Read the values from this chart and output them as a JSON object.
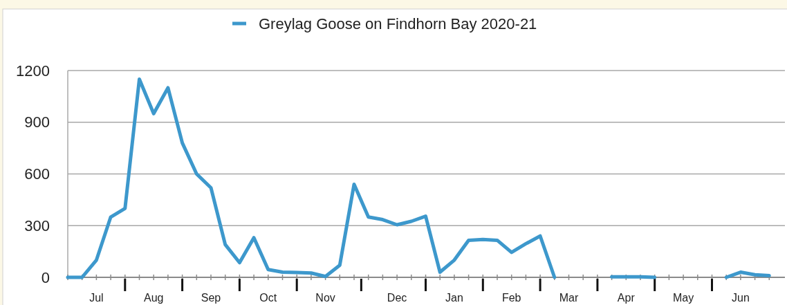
{
  "chart_data": {
    "type": "line",
    "legend": "top",
    "grid": "y",
    "categories": [
      null,
      null,
      "Jul",
      null,
      null,
      null,
      "Aug",
      null,
      null,
      null,
      "Sep",
      null,
      null,
      null,
      "Oct",
      null,
      null,
      null,
      "Nov",
      null,
      null,
      null,
      null,
      "Dec",
      null,
      null,
      null,
      "Jan",
      null,
      null,
      null,
      "Feb",
      null,
      null,
      null,
      "Mar",
      null,
      null,
      null,
      "Apr",
      null,
      null,
      null,
      "May",
      null,
      null,
      null,
      "Jun",
      null,
      null
    ],
    "series": [
      {
        "name": "Greylag Goose on Findhorn Bay 2020-21",
        "color": "#3d98cc",
        "values": [
          0,
          0,
          100,
          350,
          400,
          1150,
          950,
          1100,
          780,
          600,
          520,
          190,
          85,
          230,
          45,
          30,
          28,
          25,
          5,
          70,
          540,
          350,
          335,
          305,
          325,
          355,
          30,
          100,
          215,
          220,
          215,
          145,
          195,
          240,
          0,
          null,
          null,
          null,
          3,
          3,
          3,
          0,
          null,
          null,
          null,
          null,
          0,
          30,
          15,
          10
        ]
      }
    ],
    "ylim": [
      0,
      1200
    ],
    "yticks": [
      0,
      300,
      600,
      900,
      1200
    ]
  }
}
